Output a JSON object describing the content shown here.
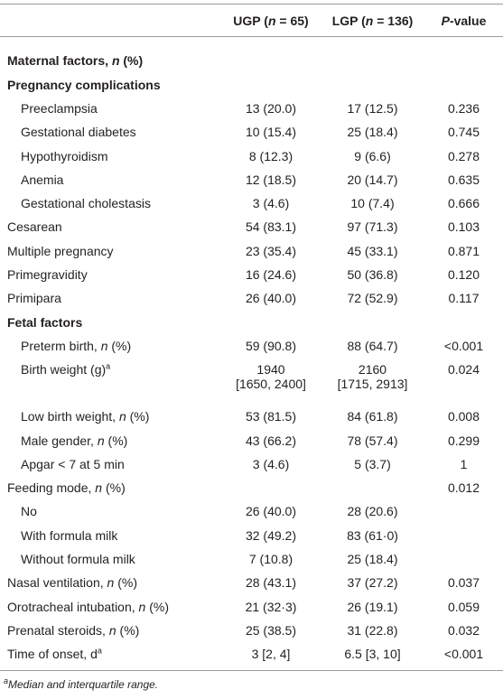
{
  "table": {
    "header": [
      [
        "UGP (",
        {
          "em": "n"
        },
        " = 65)"
      ],
      [
        "LGP (",
        {
          "em": "n"
        },
        " = 136)"
      ],
      [
        {
          "em": "P"
        },
        "-value"
      ]
    ],
    "rows": [
      {
        "section": true,
        "label": [
          "Maternal factors, ",
          {
            "em": "n"
          },
          " (%)"
        ]
      },
      {
        "section": true,
        "label": "Pregnancy complications"
      },
      {
        "indent": true,
        "label": "Preeclampsia",
        "ugp": "13 (20.0)",
        "lgp": "17 (12.5)",
        "p": "0.236"
      },
      {
        "indent": true,
        "label": "Gestational diabetes",
        "ugp": "10 (15.4)",
        "lgp": "25 (18.4)",
        "p": "0.745"
      },
      {
        "indent": true,
        "label": "Hypothyroidism",
        "ugp": "8 (12.3)",
        "lgp": "9 (6.6)",
        "p": "0.278"
      },
      {
        "indent": true,
        "label": "Anemia",
        "ugp": "12 (18.5)",
        "lgp": "20 (14.7)",
        "p": "0.635"
      },
      {
        "indent": true,
        "label": "Gestational cholestasis",
        "ugp": "3 (4.6)",
        "lgp": "10 (7.4)",
        "p": "0.666"
      },
      {
        "label": "Cesarean",
        "ugp": "54 (83.1)",
        "lgp": "97 (71.3)",
        "p": "0.103"
      },
      {
        "label": "Multiple pregnancy",
        "ugp": "23 (35.4)",
        "lgp": "45 (33.1)",
        "p": "0.871"
      },
      {
        "label": "Primegravidity",
        "ugp": "16 (24.6)",
        "lgp": "50 (36.8)",
        "p": "0.120"
      },
      {
        "label": "Primipara",
        "ugp": "26 (40.0)",
        "lgp": "72 (52.9)",
        "p": "0.117"
      },
      {
        "section": true,
        "label": "Fetal factors"
      },
      {
        "indent": true,
        "label": [
          "Preterm birth, ",
          {
            "em": "n"
          },
          " (%)"
        ],
        "ugp": "59 (90.8)",
        "lgp": "88 (64.7)",
        "p": "<0.001"
      },
      {
        "indent": true,
        "label": [
          "Birth weight (g)",
          {
            "sup": "a"
          }
        ],
        "ugp": {
          "lines": [
            "1940",
            "[1650, 2400]"
          ]
        },
        "lgp": {
          "lines": [
            "2160",
            "[1715, 2913]"
          ]
        },
        "p": "0.024"
      },
      {
        "indent": true,
        "label": [
          "Low birth weight, ",
          {
            "em": "n"
          },
          " (%)"
        ],
        "ugp": "53 (81.5)",
        "lgp": "84 (61.8)",
        "p": "0.008"
      },
      {
        "indent": true,
        "label": [
          "Male gender, ",
          {
            "em": "n"
          },
          " (%)"
        ],
        "ugp": "43 (66.2)",
        "lgp": "78 (57.4)",
        "p": "0.299"
      },
      {
        "indent": true,
        "label": "Apgar < 7 at 5 min",
        "ugp": "3 (4.6)",
        "lgp": "5 (3.7)",
        "p": "1"
      },
      {
        "label": [
          "Feeding mode, ",
          {
            "em": "n"
          },
          " (%)"
        ],
        "p": "0.012"
      },
      {
        "indent": true,
        "label": "No",
        "ugp": "26 (40.0)",
        "lgp": "28 (20.6)"
      },
      {
        "indent": true,
        "label": "With formula milk",
        "ugp": "32 (49.2)",
        "lgp": "83 (61·0)"
      },
      {
        "indent": true,
        "label": "Without formula milk",
        "ugp": "7 (10.8)",
        "lgp": "25 (18.4)"
      },
      {
        "label": [
          "Nasal ventilation, ",
          {
            "em": "n"
          },
          " (%)"
        ],
        "ugp": "28 (43.1)",
        "lgp": "37 (27.2)",
        "p": "0.037"
      },
      {
        "label": [
          "Orotracheal intubation, ",
          {
            "em": "n"
          },
          " (%)"
        ],
        "ugp": "21 (32·3)",
        "lgp": "26 (19.1)",
        "p": "0.059"
      },
      {
        "label": [
          "Prenatal steroids, ",
          {
            "em": "n"
          },
          " (%)"
        ],
        "ugp": "25 (38.5)",
        "lgp": "31 (22.8)",
        "p": "0.032"
      },
      {
        "label": [
          "Time of onset, d",
          {
            "sup": "a"
          }
        ],
        "ugp": "3 [2, 4]",
        "lgp": "6.5 [3, 10]",
        "p": "<0.001"
      }
    ],
    "footnote": [
      {
        "sup": "a"
      },
      "Median and interquartile range."
    ]
  }
}
